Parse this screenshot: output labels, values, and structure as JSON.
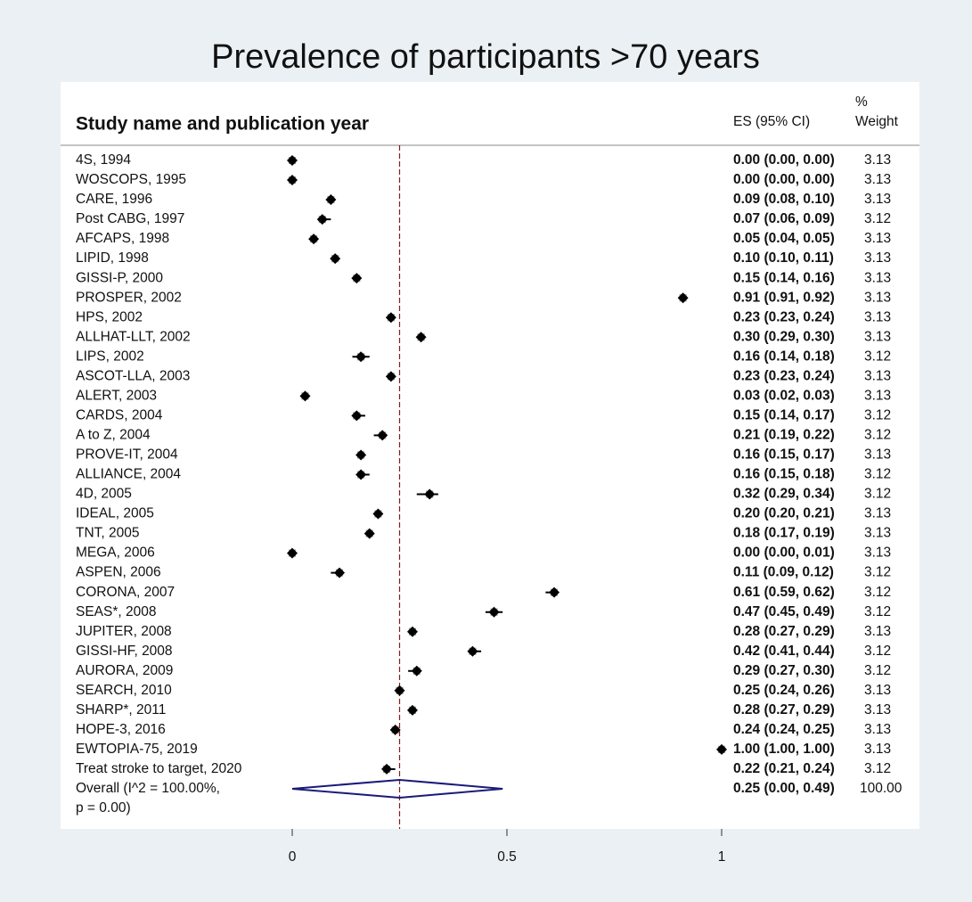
{
  "chart_data": {
    "type": "forest",
    "title": "Prevalence of participants >70 years",
    "label_header": "Study name and publication year",
    "es_header": "ES (95% CI)",
    "weight_header": [
      "%",
      "Weight"
    ],
    "categories": [
      "4S, 1994",
      "WOSCOPS, 1995",
      "CARE, 1996",
      "Post CABG, 1997",
      "AFCAPS, 1998",
      "LIPID, 1998",
      "GISSI-P, 2000",
      "PROSPER, 2002",
      "HPS, 2002",
      "ALLHAT-LLT, 2002",
      "LIPS, 2002",
      "ASCOT-LLA, 2003",
      "ALERT, 2003",
      "CARDS, 2004",
      "A to Z, 2004",
      "PROVE-IT, 2004",
      "ALLIANCE, 2004",
      "4D, 2005",
      "IDEAL, 2005",
      "TNT, 2005",
      "MEGA, 2006",
      "ASPEN, 2006",
      "CORONA, 2007",
      "SEAS*, 2008",
      "JUPITER, 2008",
      "GISSI-HF, 2008",
      "AURORA, 2009",
      "SEARCH, 2010",
      "SHARP*, 2011",
      "HOPE-3, 2016",
      "EWTOPIA-75, 2019",
      "Treat stroke to target, 2020"
    ],
    "values": [
      0.0,
      0.0,
      0.09,
      0.07,
      0.05,
      0.1,
      0.15,
      0.91,
      0.23,
      0.3,
      0.16,
      0.23,
      0.03,
      0.15,
      0.21,
      0.16,
      0.16,
      0.32,
      0.2,
      0.18,
      0.0,
      0.11,
      0.61,
      0.47,
      0.28,
      0.42,
      0.29,
      0.25,
      0.28,
      0.24,
      1.0,
      0.22
    ],
    "lower": [
      0.0,
      0.0,
      0.08,
      0.06,
      0.04,
      0.1,
      0.14,
      0.91,
      0.23,
      0.29,
      0.14,
      0.23,
      0.02,
      0.14,
      0.19,
      0.15,
      0.15,
      0.29,
      0.2,
      0.17,
      0.0,
      0.09,
      0.59,
      0.45,
      0.27,
      0.41,
      0.27,
      0.24,
      0.27,
      0.24,
      1.0,
      0.21
    ],
    "upper": [
      0.0,
      0.0,
      0.1,
      0.09,
      0.05,
      0.11,
      0.16,
      0.92,
      0.24,
      0.3,
      0.18,
      0.24,
      0.03,
      0.17,
      0.22,
      0.17,
      0.18,
      0.34,
      0.21,
      0.19,
      0.01,
      0.12,
      0.62,
      0.49,
      0.29,
      0.44,
      0.3,
      0.26,
      0.29,
      0.25,
      1.0,
      0.24
    ],
    "value_labels": [
      "0.00 (0.00, 0.00)",
      "0.00 (0.00, 0.00)",
      "0.09 (0.08, 0.10)",
      "0.07 (0.06, 0.09)",
      "0.05 (0.04, 0.05)",
      "0.10 (0.10, 0.11)",
      "0.15 (0.14, 0.16)",
      "0.91 (0.91, 0.92)",
      "0.23 (0.23, 0.24)",
      "0.30 (0.29, 0.30)",
      "0.16 (0.14, 0.18)",
      "0.23 (0.23, 0.24)",
      "0.03 (0.02, 0.03)",
      "0.15 (0.14, 0.17)",
      "0.21 (0.19, 0.22)",
      "0.16 (0.15, 0.17)",
      "0.16 (0.15, 0.18)",
      "0.32 (0.29, 0.34)",
      "0.20 (0.20, 0.21)",
      "0.18 (0.17, 0.19)",
      "0.00 (0.00, 0.01)",
      "0.11 (0.09, 0.12)",
      "0.61 (0.59, 0.62)",
      "0.47 (0.45, 0.49)",
      "0.28 (0.27, 0.29)",
      "0.42 (0.41, 0.44)",
      "0.29 (0.27, 0.30)",
      "0.25 (0.24, 0.26)",
      "0.28 (0.27, 0.29)",
      "0.24 (0.24, 0.25)",
      "1.00 (1.00, 1.00)",
      "0.22 (0.21, 0.24)"
    ],
    "weights": [
      3.13,
      3.13,
      3.13,
      3.12,
      3.13,
      3.13,
      3.13,
      3.13,
      3.13,
      3.13,
      3.12,
      3.13,
      3.13,
      3.12,
      3.12,
      3.13,
      3.12,
      3.12,
      3.13,
      3.13,
      3.13,
      3.12,
      3.12,
      3.12,
      3.13,
      3.12,
      3.12,
      3.13,
      3.13,
      3.13,
      3.13,
      3.12
    ],
    "overall": {
      "name": [
        "Overall  (I^2 = 100.00%,",
        "p = 0.00)"
      ],
      "value": 0.25,
      "lower": 0.0,
      "upper": 0.49,
      "value_label": "0.25 (0.00, 0.49)",
      "weight": {
        "value": 100,
        "label": "100.00"
      }
    },
    "xlim": [
      0,
      1
    ],
    "xticks": [
      0,
      0.5,
      1
    ],
    "marker_color": "#000000",
    "box_color": "#9a9a9a",
    "overall_color": "#1a1a7a",
    "ref_color": "#8b1a1a"
  }
}
